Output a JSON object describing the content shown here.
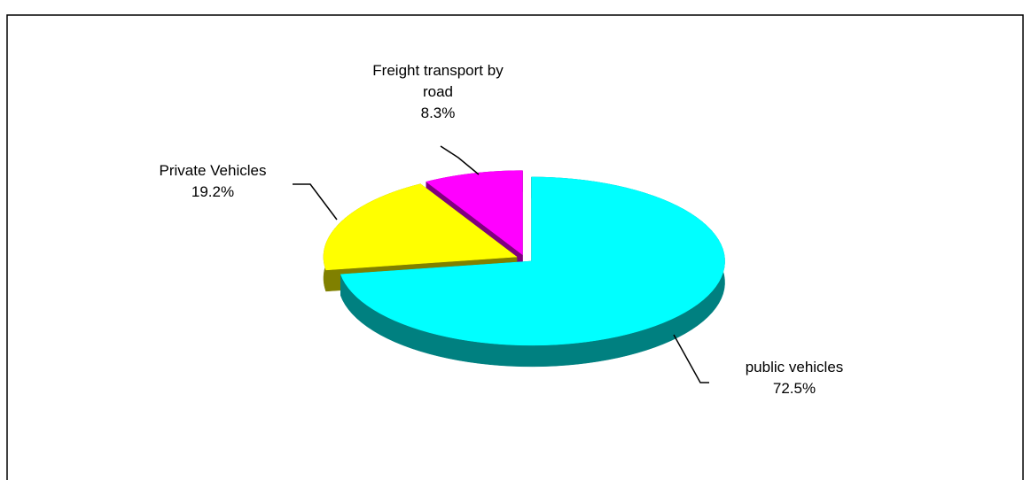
{
  "chart_data": {
    "type": "pie",
    "categories": [
      "public vehicles",
      "Private Vehicles",
      "Freight transport by road"
    ],
    "values": [
      72.5,
      19.2,
      8.3
    ],
    "value_labels": [
      "72.5%",
      "19.2%",
      "8.3%"
    ],
    "colors": [
      "#00ffff",
      "#ffff00",
      "#ff00ff"
    ]
  }
}
